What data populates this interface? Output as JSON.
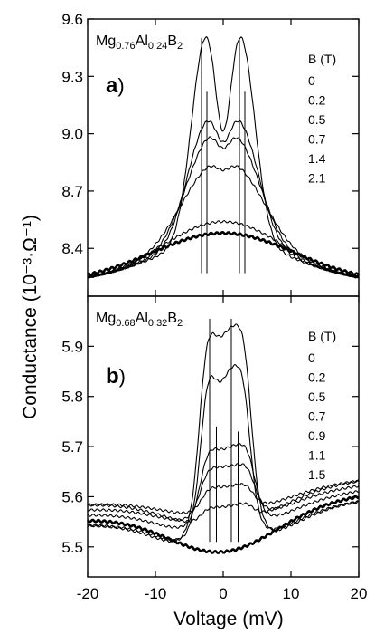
{
  "chart_data": {
    "type": "line",
    "xlabel": "Voltage (mV)",
    "ylabel": "Conductance (10⁻³·Ω⁻¹)",
    "xlim": [
      -20,
      20
    ],
    "x_ticks": [
      -20,
      -10,
      0,
      10,
      20
    ],
    "x_tick_labels": [
      "-20",
      "-10",
      "0",
      "10",
      "20"
    ],
    "panels": [
      {
        "panel_label": "a",
        "material": {
          "prefix": "Mg",
          "sub1": "0.76",
          "mid": "Al",
          "sub2": "0.24",
          "suffix": "B",
          "sub3": "2"
        },
        "legend_title": "B (T)",
        "ylim": [
          8.15,
          9.6
        ],
        "y_ticks": [
          8.4,
          8.7,
          9.0,
          9.3,
          9.6
        ],
        "y_tick_labels": [
          "8.4",
          "8.7",
          "9.0",
          "9.3",
          "9.6"
        ],
        "vlines": [
          -3.2,
          -2.4,
          2.4,
          3.2
        ],
        "curve_shape": "double-peak",
        "series": [
          {
            "name": "0",
            "background": 8.22,
            "peak_height": 1.19,
            "peak_x": 2.6,
            "peak_width": 2.1,
            "dip": 0.4
          },
          {
            "name": "0.2",
            "background": 8.22,
            "peak_height": 0.62,
            "peak_x": 2.7,
            "peak_width": 2.8,
            "dip": 0.17
          },
          {
            "name": "0.5",
            "background": 8.22,
            "peak_height": 0.48,
            "peak_x": 2.7,
            "peak_width": 3.3,
            "dip": 0.12
          },
          {
            "name": "0.7",
            "background": 8.22,
            "peak_height": 0.31,
            "peak_x": 2.9,
            "peak_width": 4.2,
            "dip": 0.06
          },
          {
            "name": "1.4",
            "background": 8.22,
            "peak_height": 0.32,
            "peak_x": 0.0,
            "peak_width": 9.0,
            "dip": 0.0
          },
          {
            "name": "2.1",
            "background": 8.22,
            "peak_height": 0.26,
            "peak_x": 0.0,
            "peak_width": 10.5,
            "dip": 0.0
          }
        ]
      },
      {
        "panel_label": "b",
        "material": {
          "prefix": "Mg",
          "sub1": "0.68",
          "mid": "Al",
          "sub2": "0.32",
          "suffix": "B",
          "sub3": "2"
        },
        "legend_title": "B (T)",
        "ylim": [
          5.44,
          6.0
        ],
        "y_ticks": [
          5.5,
          5.6,
          5.7,
          5.8,
          5.9
        ],
        "y_tick_labels": [
          "5.5",
          "5.6",
          "5.7",
          "5.8",
          "5.9"
        ],
        "vlines": [
          -2.0,
          -1.0,
          1.2,
          2.2
        ],
        "curve_shape": "plateau-on-dip",
        "series": [
          {
            "name": "0",
            "background_edge": 5.57,
            "dip_depth": 0.09,
            "peak_height": 0.46,
            "peak_center": 0.3,
            "peak_halfwidth": 4.0,
            "inner_dip": 0.02
          },
          {
            "name": "0.2",
            "background_edge": 5.57,
            "dip_depth": 0.08,
            "peak_height": 0.37,
            "peak_center": 0.3,
            "peak_halfwidth": 3.8,
            "inner_dip": 0.03
          },
          {
            "name": "0.5",
            "background_edge": 5.59,
            "dip_depth": 0.07,
            "peak_height": 0.18,
            "peak_center": 0.6,
            "peak_halfwidth": 4.2,
            "inner_dip": 0.005
          },
          {
            "name": "0.7",
            "background_edge": 5.6,
            "dip_depth": 0.06,
            "peak_height": 0.12,
            "peak_center": 0.6,
            "peak_halfwidth": 4.2,
            "inner_dip": 0.0
          },
          {
            "name": "0.9",
            "background_edge": 5.61,
            "dip_depth": 0.05,
            "peak_height": 0.06,
            "peak_center": 0.6,
            "peak_halfwidth": 4.0,
            "inner_dip": 0.0
          },
          {
            "name": "1.1",
            "background_edge": 5.61,
            "dip_depth": 0.07,
            "peak_height": 0.04,
            "peak_center": 0.6,
            "peak_halfwidth": 4.0,
            "inner_dip": 0.0
          },
          {
            "name": "1.5",
            "background_edge": 5.58,
            "dip_depth": 0.09,
            "peak_height": 0.0,
            "peak_center": 0.0,
            "peak_halfwidth": 4.0,
            "inner_dip": 0.0
          }
        ]
      }
    ]
  }
}
